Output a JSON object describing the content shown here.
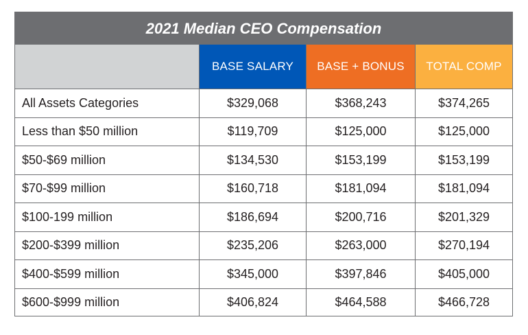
{
  "chart_data": {
    "type": "table",
    "title": "2021 Median CEO Compensation",
    "columns": [
      "BASE SALARY",
      "BASE + BONUS",
      "TOTAL COMP"
    ],
    "colors": {
      "title_bg": "#6d6e71",
      "base_salary": "#0057b7",
      "base_bonus": "#ee6e23",
      "total_comp": "#fbb040",
      "corner": "#d1d3d4"
    },
    "rows": [
      {
        "label": "All Assets Categories",
        "values": [
          "$329,068",
          "$368,243",
          "$374,265"
        ]
      },
      {
        "label": "Less than $50 million",
        "values": [
          "$119,709",
          "$125,000",
          "$125,000"
        ]
      },
      {
        "label": "$50-$69 million",
        "values": [
          "$134,530",
          "$153,199",
          "$153,199"
        ]
      },
      {
        "label": "$70-$99 million",
        "values": [
          "$160,718",
          "$181,094",
          "$181,094"
        ]
      },
      {
        "label": "$100-199 million",
        "values": [
          "$186,694",
          "$200,716",
          "$201,329"
        ]
      },
      {
        "label": "$200-$399 million",
        "values": [
          "$235,206",
          "$263,000",
          "$270,194"
        ]
      },
      {
        "label": "$400-$599 million",
        "values": [
          "$345,000",
          "$397,846",
          "$405,000"
        ]
      },
      {
        "label": "$600-$999 million",
        "values": [
          "$406,824",
          "$464,588",
          "$466,728"
        ]
      }
    ]
  }
}
